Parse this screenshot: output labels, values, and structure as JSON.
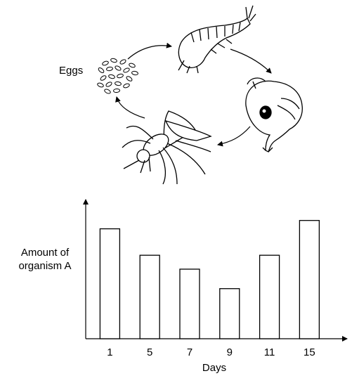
{
  "diagram": {
    "title": "",
    "eggs_label": "Eggs",
    "stages": [
      "eggs-icon",
      "larva-icon",
      "pupa-icon",
      "adult-mosquito-icon"
    ]
  },
  "chart_data": {
    "type": "bar",
    "title": "",
    "xlabel": "Days",
    "ylabel": "Amount of organism A",
    "categories": [
      "1",
      "5",
      "7",
      "9",
      "11",
      "15"
    ],
    "values": [
      7.9,
      6.0,
      5.0,
      3.6,
      6.0,
      8.5
    ],
    "ylim": [
      0,
      10
    ],
    "yaxis_ticks": false,
    "grid": false,
    "legend": "none",
    "bar_fill": "#ffffff",
    "bar_stroke": "#000000"
  }
}
